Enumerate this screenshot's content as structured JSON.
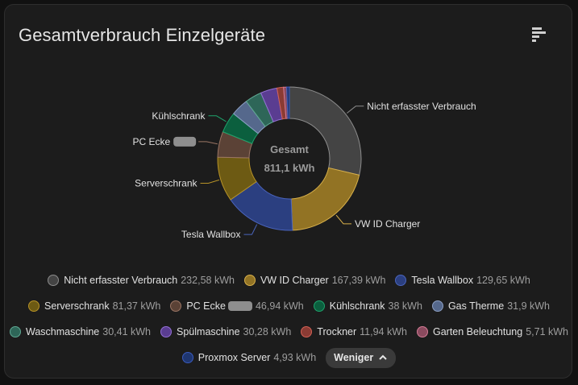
{
  "card": {
    "title": "Gesamtverbrauch Einzelgeräte",
    "menu_icon": "bar-list-icon"
  },
  "center": {
    "label": "Gesamt",
    "value": "811,1 kWh"
  },
  "chart_data": {
    "type": "pie",
    "title": "Gesamtverbrauch Einzelgeräte",
    "unit": "kWh",
    "total": 811.1,
    "categories": [
      "Nicht erfasster Verbrauch",
      "VW ID Charger",
      "Tesla Wallbox",
      "Serverschrank",
      "PC Ecke",
      "Kühlschrank",
      "Gas Therme",
      "Waschmaschine",
      "Spülmaschine",
      "Trockner",
      "Garten Beleuchtung",
      "Proxmox Server"
    ],
    "values": [
      232.58,
      167.39,
      129.65,
      81.37,
      46.94,
      38,
      31.9,
      30.41,
      30.28,
      11.94,
      5.71,
      4.93
    ],
    "colors": [
      "#444444",
      "#927324",
      "#2b3f80",
      "#6d5a13",
      "#5b4236",
      "#0b5f3e",
      "#55688c",
      "#2e6658",
      "#5a3d91",
      "#8a3b34",
      "#8a4a5e",
      "#1f3670"
    ],
    "outer_labels": [
      {
        "index": 0,
        "text": "Nicht erfasster Verbrauch"
      },
      {
        "index": 1,
        "text": "VW ID Charger"
      },
      {
        "index": 2,
        "text": "Tesla Wallbox"
      },
      {
        "index": 3,
        "text": "Serverschrank"
      },
      {
        "index": 4,
        "text": "PC Ecke"
      },
      {
        "index": 5,
        "text": "Kühlschrank"
      }
    ]
  },
  "legend": {
    "rows": [
      [
        {
          "name": "Nicht erfasster Verbrauch",
          "value": "232,58 kWh",
          "color": "#444444",
          "border": "#8c8c8c"
        },
        {
          "name": "VW ID Charger",
          "value": "167,39 kWh",
          "color": "#927324",
          "border": "#d8b04a"
        },
        {
          "name": "Tesla Wallbox",
          "value": "129,65 kWh",
          "color": "#2b3f80",
          "border": "#4a64bd"
        }
      ],
      [
        {
          "name": "Serverschrank",
          "value": "81,37 kWh",
          "color": "#6d5a13",
          "border": "#b69227"
        },
        {
          "name": "PC Ecke",
          "value": "46,94 kWh",
          "color": "#5b4236",
          "border": "#9a7564",
          "redacted": true
        },
        {
          "name": "Kühlschrank",
          "value": "38 kWh",
          "color": "#0b5f3e",
          "border": "#1ea36c"
        },
        {
          "name": "Gas Therme",
          "value": "31,9 kWh",
          "color": "#55688c",
          "border": "#8da0c4"
        }
      ],
      [
        {
          "name": "Waschmaschine",
          "value": "30,41 kWh",
          "color": "#2e6658",
          "border": "#5fa893"
        },
        {
          "name": "Spülmaschine",
          "value": "30,28 kWh",
          "color": "#5a3d91",
          "border": "#9470d4"
        },
        {
          "name": "Trockner",
          "value": "11,94 kWh",
          "color": "#8a3b34",
          "border": "#d26155"
        },
        {
          "name": "Garten Beleuchtung",
          "value": "5,71 kWh",
          "color": "#8a4a5e",
          "border": "#d27b95"
        }
      ],
      [
        {
          "name": "Proxmox Server",
          "value": "4,93 kWh",
          "color": "#1f3670",
          "border": "#3a5bbd"
        }
      ]
    ],
    "less_button": {
      "label": "Weniger",
      "icon": "chevron-up-icon"
    }
  }
}
